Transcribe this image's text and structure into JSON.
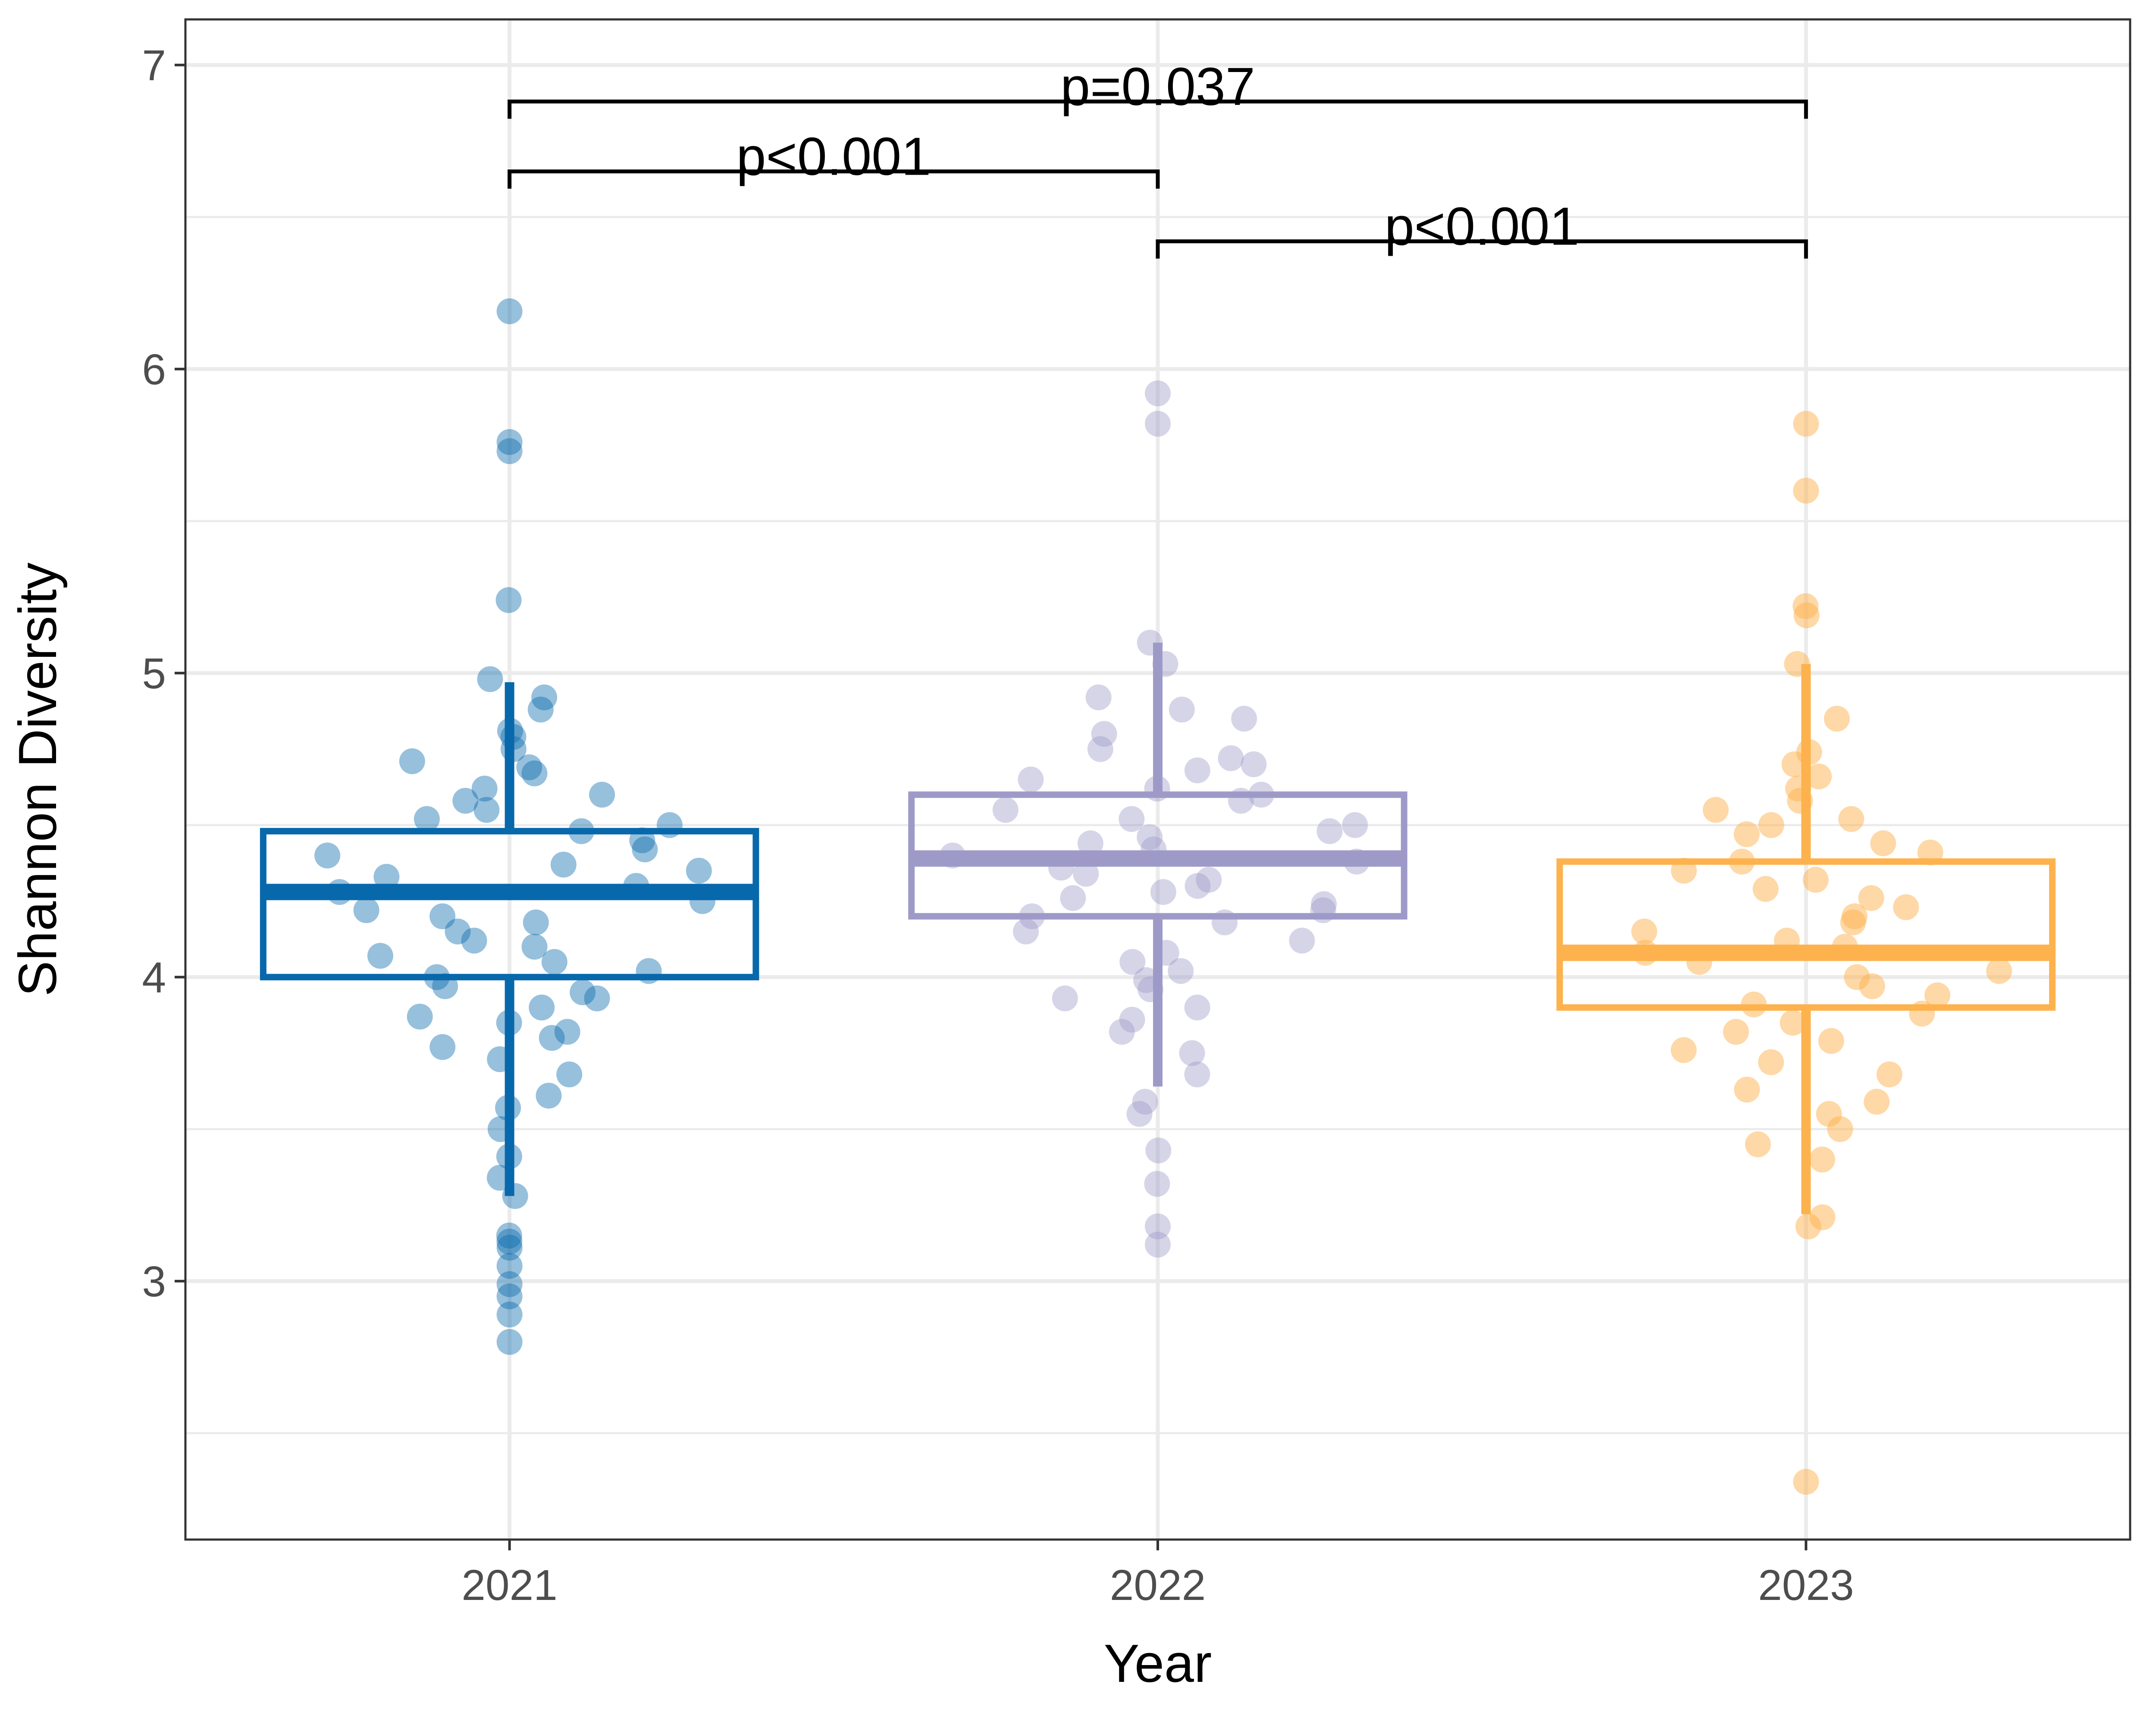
{
  "chart_data": {
    "type": "box",
    "xlabel": "Year",
    "ylabel": "Shannon Diversity",
    "ylim": [
      2.15,
      7.15
    ],
    "y_ticks": [
      3,
      4,
      5,
      6,
      7
    ],
    "categories": [
      "2021",
      "2022",
      "2023"
    ],
    "grid": true,
    "legend": "none",
    "colors": {
      "2021": "#0868ac",
      "2022": "#9e9ac8",
      "2023": "#fdb24d"
    },
    "boxes": [
      {
        "category": "2021",
        "q1": 4.0,
        "median": 4.28,
        "q3": 4.48,
        "whisker_low": 3.28,
        "whisker_high": 4.97,
        "points": [
          6.19,
          5.76,
          5.73,
          5.24,
          4.98,
          4.92,
          4.88,
          4.81,
          4.79,
          4.75,
          4.71,
          4.69,
          4.67,
          4.62,
          4.6,
          4.58,
          4.55,
          4.52,
          4.5,
          4.48,
          4.45,
          4.42,
          4.4,
          4.37,
          4.35,
          4.33,
          4.3,
          4.28,
          4.25,
          4.22,
          4.2,
          4.18,
          4.15,
          4.12,
          4.1,
          4.07,
          4.05,
          4.02,
          4.0,
          3.97,
          3.95,
          3.93,
          3.9,
          3.87,
          3.85,
          3.82,
          3.8,
          3.77,
          3.73,
          3.68,
          3.61,
          3.57,
          3.5,
          3.41,
          3.34,
          3.28,
          3.15,
          3.13,
          3.11,
          3.05,
          2.99,
          2.95,
          2.89,
          2.8
        ]
      },
      {
        "category": "2022",
        "q1": 4.2,
        "median": 4.39,
        "q3": 4.6,
        "whisker_low": 3.64,
        "whisker_high": 5.1,
        "points": [
          5.92,
          5.82,
          5.1,
          5.03,
          4.92,
          4.88,
          4.85,
          4.8,
          4.75,
          4.72,
          4.7,
          4.68,
          4.65,
          4.62,
          4.6,
          4.58,
          4.55,
          4.52,
          4.5,
          4.48,
          4.46,
          4.44,
          4.42,
          4.4,
          4.38,
          4.36,
          4.34,
          4.32,
          4.3,
          4.28,
          4.26,
          4.24,
          4.22,
          4.2,
          4.18,
          4.15,
          4.12,
          4.08,
          4.05,
          4.02,
          3.99,
          3.96,
          3.93,
          3.9,
          3.86,
          3.82,
          3.75,
          3.68,
          3.59,
          3.55,
          3.43,
          3.32,
          3.18,
          3.12
        ]
      },
      {
        "category": "2023",
        "q1": 3.9,
        "median": 4.08,
        "q3": 4.38,
        "whisker_low": 3.22,
        "whisker_high": 5.03,
        "points": [
          5.82,
          5.6,
          5.22,
          5.19,
          5.03,
          4.85,
          4.74,
          4.7,
          4.66,
          4.62,
          4.58,
          4.55,
          4.52,
          4.5,
          4.47,
          4.44,
          4.41,
          4.38,
          4.35,
          4.32,
          4.29,
          4.26,
          4.23,
          4.2,
          4.18,
          4.15,
          4.12,
          4.1,
          4.08,
          4.05,
          4.02,
          4.0,
          3.97,
          3.94,
          3.91,
          3.88,
          3.85,
          3.82,
          3.79,
          3.76,
          3.72,
          3.68,
          3.63,
          3.59,
          3.55,
          3.5,
          3.45,
          3.4,
          3.21,
          3.18,
          2.34
        ]
      }
    ],
    "comparisons": [
      {
        "from": "2021",
        "to": "2023",
        "y": 6.88,
        "label": "p=0.037"
      },
      {
        "from": "2021",
        "to": "2022",
        "y": 6.65,
        "label": "p<0.001"
      },
      {
        "from": "2022",
        "to": "2023",
        "y": 6.42,
        "label": "p<0.001"
      }
    ]
  }
}
